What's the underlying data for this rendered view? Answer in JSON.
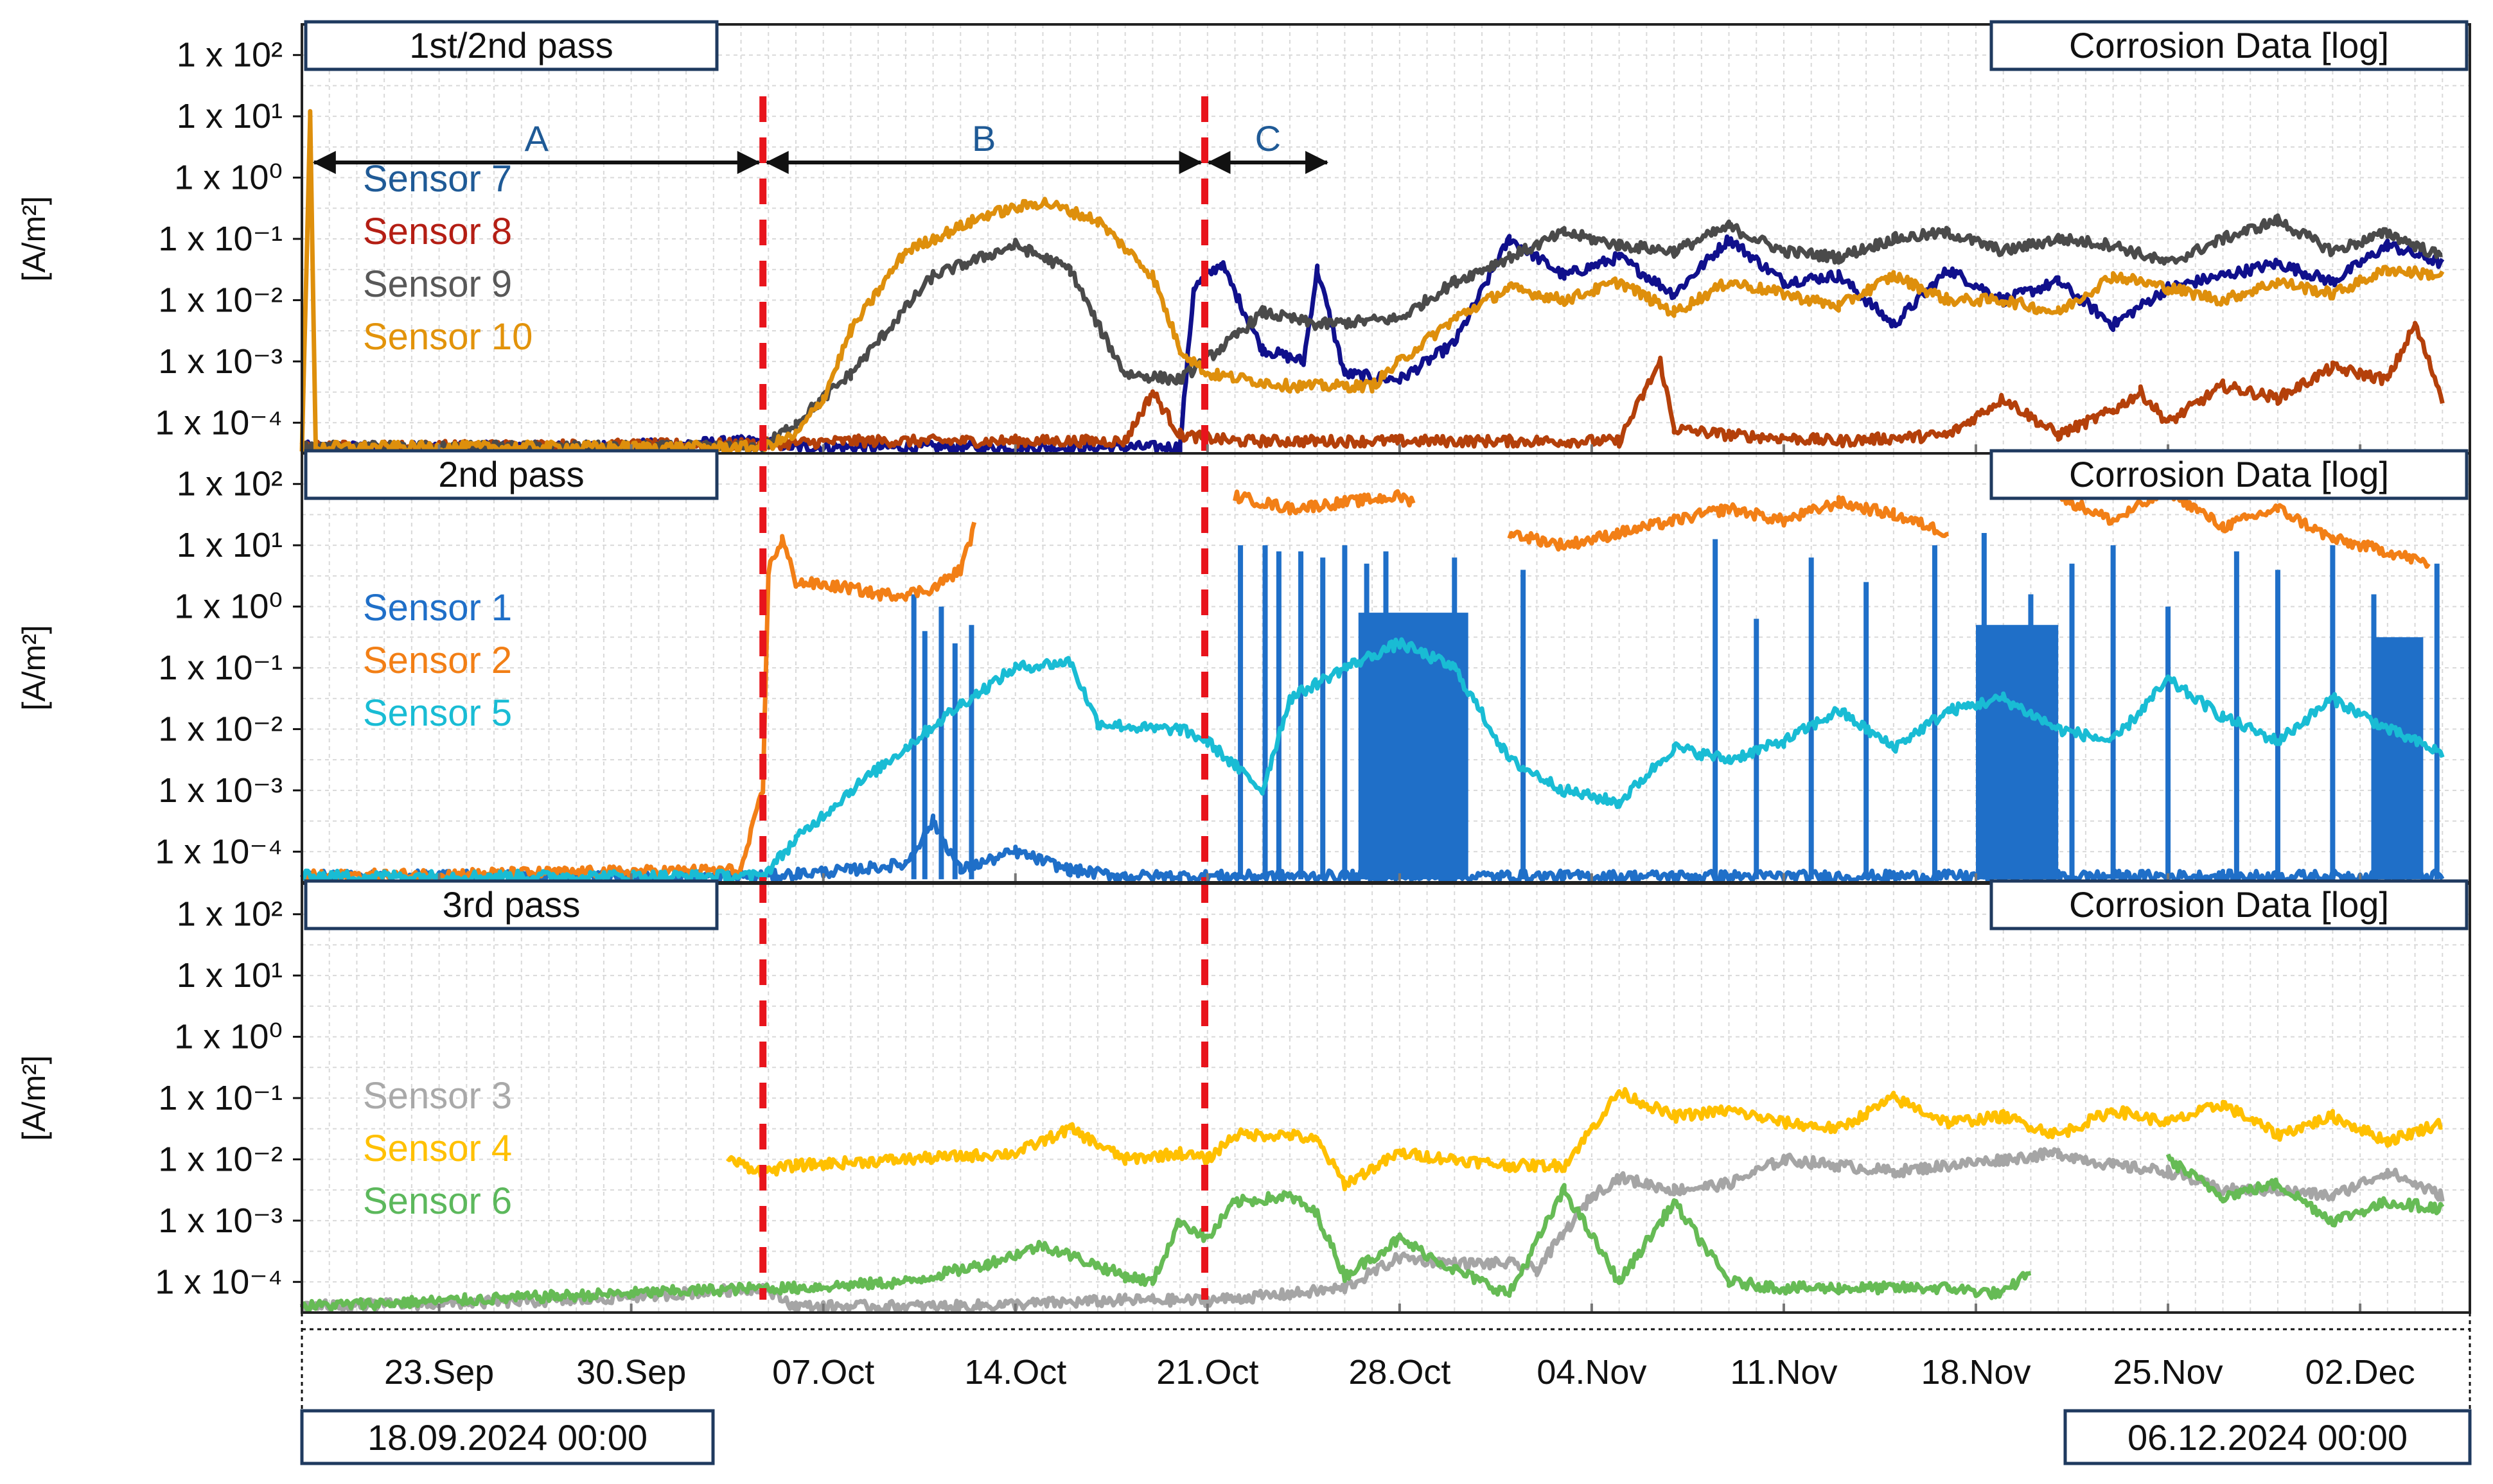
{
  "chart_data": {
    "type": "line",
    "y_scale": "log",
    "x_range": [
      "18.09.2024 00:00",
      "06.12.2024 00:00"
    ],
    "x_tick_labels": [
      "23.Sep",
      "30.Sep",
      "07.Oct",
      "14.Oct",
      "21.Oct",
      "28.Oct",
      "04.Nov",
      "11.Nov",
      "18.Nov",
      "25.Nov",
      "02.Dec"
    ],
    "x_tick_days": [
      5,
      12,
      19,
      26,
      33,
      40,
      47,
      54,
      61,
      68,
      75
    ],
    "total_days": 79,
    "y_tick_labels": [
      "1 x 10²",
      "1 x 10¹",
      "1 x 10⁰",
      "1 x 10⁻¹",
      "1 x 10⁻²",
      "1 x 10⁻³",
      "1 x 10⁻⁴"
    ],
    "y_tick_exponents": [
      2,
      1,
      0,
      -1,
      -2,
      -3,
      -4
    ],
    "ylim_log10": [
      -4.5,
      2.5
    ],
    "ylabel": "[A/m²]",
    "start_label": "18.09.2024 00:00",
    "end_label": "06.12.2024 00:00",
    "markers": [
      {
        "day": 16.8,
        "color": "#e8141c"
      },
      {
        "day": 32.9,
        "color": "#e8141c"
      }
    ],
    "phases": [
      {
        "label": "A",
        "from_day": 0.3,
        "to_day": 16.8
      },
      {
        "label": "B",
        "from_day": 16.8,
        "to_day": 32.9
      },
      {
        "label": "C",
        "from_day": 32.9,
        "to_day": 37.5
      }
    ],
    "panels": [
      {
        "title": "1st/2nd pass",
        "corner_label": "Corrosion Data [log]",
        "series": [
          {
            "name": "Sensor 7",
            "color": "#1f5a96",
            "line_color": "#10108c",
            "days": [
              0,
              10,
              16.8,
              18,
              24,
              30,
              32,
              32.5,
              33.5,
              35,
              36.5,
              37,
              38,
              40,
              42,
              44,
              46,
              48,
              50,
              52,
              54,
              56,
              58,
              60,
              62,
              64,
              66,
              68,
              70,
              72,
              74,
              76,
              78
            ],
            "log10_values": [
              -4.4,
              -4.4,
              -4.3,
              -4.4,
              -4.4,
              -4.4,
              -4.4,
              -1.8,
              -1.4,
              -2.8,
              -3.0,
              -1.5,
              -3.2,
              -3.3,
              -2.7,
              -1.0,
              -1.6,
              -1.3,
              -1.9,
              -1.0,
              -1.7,
              -1.6,
              -2.4,
              -1.5,
              -2.0,
              -1.7,
              -2.4,
              -1.8,
              -1.6,
              -1.4,
              -1.7,
              -1.1,
              -1.4
            ]
          },
          {
            "name": "Sensor 8",
            "color": "#b41e14",
            "line_color": "#b4400a",
            "days": [
              0,
              16.8,
              20,
              30,
              31,
              32,
              34,
              40,
              48,
              49.5,
              50,
              52,
              56,
              60,
              62,
              64,
              66,
              67,
              68,
              70,
              72,
              74,
              76,
              77,
              78
            ],
            "log10_values": [
              -4.4,
              -4.35,
              -4.3,
              -4.3,
              -3.5,
              -4.2,
              -4.3,
              -4.3,
              -4.3,
              -3.0,
              -4.1,
              -4.2,
              -4.3,
              -4.2,
              -3.6,
              -4.2,
              -3.8,
              -3.5,
              -4.0,
              -3.4,
              -3.6,
              -3.1,
              -3.3,
              -2.4,
              -3.6
            ]
          },
          {
            "name": "Sensor 9",
            "color": "#585858",
            "line_color": "#4a4a4a",
            "days": [
              0,
              16.8,
              18,
              20,
              23,
              26,
              28,
              29,
              30,
              32,
              34,
              35,
              37,
              40,
              42,
              44,
              46,
              48,
              50,
              52,
              54,
              56,
              58,
              60,
              62,
              64,
              66,
              68,
              70,
              72,
              74,
              76,
              78
            ],
            "log10_values": [
              -4.4,
              -4.4,
              -4.0,
              -3.2,
              -1.6,
              -1.1,
              -1.5,
              -2.4,
              -3.2,
              -3.3,
              -2.6,
              -2.2,
              -2.4,
              -2.3,
              -1.7,
              -1.3,
              -0.9,
              -1.1,
              -1.2,
              -0.8,
              -1.2,
              -1.3,
              -1.0,
              -0.9,
              -1.2,
              -1.0,
              -1.1,
              -1.4,
              -1.0,
              -0.7,
              -1.2,
              -0.9,
              -1.3
            ]
          },
          {
            "name": "Sensor 10",
            "color": "#e2930b",
            "line_color": "#de8f0c",
            "days": [
              0,
              0.3,
              0.5,
              16.8,
              18,
              19,
              20,
              22,
              25,
              27,
              29,
              31,
              32,
              33,
              36,
              39,
              40,
              42,
              44,
              46,
              48,
              50,
              52,
              54,
              56,
              58,
              60,
              62,
              64,
              66,
              68,
              70,
              72,
              74,
              76,
              78
            ],
            "log10_values": [
              -4.4,
              1.0,
              -4.4,
              -4.4,
              -4.2,
              -3.6,
              -2.5,
              -1.2,
              -0.6,
              -0.4,
              -0.7,
              -1.6,
              -2.8,
              -3.2,
              -3.4,
              -3.4,
              -3.0,
              -2.3,
              -1.8,
              -2.0,
              -1.7,
              -2.2,
              -1.7,
              -1.9,
              -2.1,
              -1.6,
              -2.0,
              -2.0,
              -2.2,
              -1.6,
              -1.8,
              -2.0,
              -1.7,
              -1.9,
              -1.5,
              -1.6
            ]
          }
        ]
      },
      {
        "title": "2nd pass",
        "corner_label": "Corrosion Data [log]",
        "series": [
          {
            "name": "Sensor 1",
            "color": "#1f6fc8",
            "line_color": "#1f6fc8",
            "days": [
              0,
              16.8,
              20,
              22,
              23,
              24,
              26,
              28,
              30,
              32,
              33,
              34,
              36,
              40,
              44,
              46,
              50,
              54,
              58,
              62,
              66,
              70,
              74,
              78
            ],
            "log10_values": [
              -4.4,
              -4.4,
              -4.3,
              -4.2,
              -3.5,
              -4.3,
              -4.0,
              -4.3,
              -4.4,
              -4.4,
              -4.4,
              -4.4,
              -4.4,
              -4.4,
              -4.4,
              -4.4,
              -4.4,
              -4.4,
              -4.4,
              -4.4,
              -4.4,
              -4.4,
              -4.4,
              -4.4
            ],
            "spike_days": [
              22.3,
              22.7,
              23.3,
              23.8,
              24.4,
              34.2,
              35.1,
              35.6,
              36.4,
              37.2,
              38.0,
              38.8,
              39.5,
              42.0,
              44.5,
              51.5,
              53.0,
              55.0,
              57.0,
              59.5,
              61.3,
              63.0,
              64.5,
              66.0,
              68.0,
              70.5,
              72.0,
              74.0,
              75.5,
              77.8
            ],
            "spike_tops": [
              0.2,
              -0.4,
              0.0,
              -0.6,
              -0.3,
              1.0,
              1.0,
              0.9,
              0.9,
              0.8,
              1.0,
              0.7,
              0.9,
              0.8,
              0.6,
              1.1,
              -0.2,
              0.8,
              0.4,
              1.0,
              1.2,
              0.2,
              0.7,
              1.0,
              0.0,
              0.9,
              0.6,
              1.0,
              0.2,
              0.7
            ],
            "bands": [
              [
                38.5,
                42.5,
                -0.1
              ],
              [
                61.0,
                64.0,
                -0.3
              ],
              [
                75.5,
                77.3,
                -0.5
              ]
            ]
          },
          {
            "name": "Sensor 2",
            "color": "#f27f16",
            "line_color": "#f27f16",
            "days": [
              0,
              16,
              16.8,
              17.0,
              17.5,
              18,
              20,
              21,
              22,
              23,
              24,
              24.5,
              33,
              34,
              36,
              38,
              40,
              40.5,
              43,
              44,
              46,
              48,
              50,
              52,
              54,
              56,
              58,
              60,
              62,
              64,
              66,
              68,
              70,
              72,
              74,
              76,
              77.5
            ],
            "log10_values": [
              -4.4,
              -4.3,
              -3.0,
              0.6,
              1.1,
              0.4,
              0.3,
              0.2,
              0.2,
              0.3,
              0.6,
              1.3,
              null,
              1.8,
              1.6,
              1.7,
              1.8,
              1.7,
              null,
              1.2,
              1.0,
              1.2,
              1.4,
              1.6,
              1.4,
              1.7,
              1.5,
              1.2,
              null,
              1.8,
              1.4,
              1.9,
              1.3,
              1.6,
              1.1,
              0.9,
              0.7
            ]
          },
          {
            "name": "Sensor 5",
            "color": "#19bcd4",
            "line_color": "#19bcd4",
            "days": [
              0,
              16.8,
              18,
              20,
              22,
              24,
              26,
              28,
              29,
              31,
              32,
              33,
              34,
              35,
              36,
              38,
              40,
              42,
              44,
              46,
              48,
              50,
              52,
              54,
              56,
              58,
              60,
              62,
              64,
              66,
              68,
              70,
              72,
              74,
              76,
              78
            ],
            "log10_values": [
              -4.4,
              -4.4,
              -3.8,
              -3.0,
              -2.3,
              -1.6,
              -1.0,
              -0.9,
              -1.9,
              -2.0,
              -2.0,
              -2.2,
              -2.6,
              -3.0,
              -1.5,
              -1.0,
              -0.6,
              -1.0,
              -2.5,
              -3.0,
              -3.2,
              -2.3,
              -2.5,
              -2.2,
              -1.7,
              -2.3,
              -1.7,
              -1.5,
              -2.0,
              -2.2,
              -1.2,
              -1.8,
              -2.2,
              -1.5,
              -2.0,
              -2.4
            ]
          }
        ]
      },
      {
        "title": "3rd pass",
        "corner_label": "Corrosion Data [log]",
        "series": [
          {
            "name": "Sensor 3",
            "color": "#a9a9a9",
            "line_color": "#a5a5a5",
            "days": [
              0,
              10,
              16.8,
              18,
              24,
              30,
              33,
              36,
              38,
              40,
              42,
              44,
              45,
              47,
              48,
              50,
              52,
              54,
              56,
              58,
              60,
              62,
              64,
              66,
              68,
              70,
              72,
              74,
              76,
              78
            ],
            "log10_values": [
              -4.4,
              -4.3,
              -4.1,
              -4.4,
              -4.4,
              -4.3,
              -4.3,
              -4.2,
              -4.1,
              -3.6,
              -3.7,
              -3.7,
              -3.8,
              -2.6,
              -2.3,
              -2.5,
              -2.4,
              -2.0,
              -2.1,
              -2.2,
              -2.1,
              -2.0,
              -1.9,
              -2.1,
              -2.2,
              -2.5,
              -2.5,
              -2.6,
              -2.2,
              -2.6
            ]
          },
          {
            "name": "Sensor 4",
            "color": "#ffc000",
            "line_color": "#ffc000",
            "days": [
              15.5,
              16.8,
              18,
              22,
              26,
              28,
              30,
              32,
              33,
              34,
              36,
              37,
              38,
              40,
              42,
              44,
              46,
              47,
              48,
              50,
              52,
              54,
              56,
              58,
              60,
              62,
              64,
              66,
              68,
              70,
              72,
              74,
              76,
              78
            ],
            "log10_values": [
              -2.0,
              -2.2,
              -2.1,
              -2.0,
              -1.9,
              -1.5,
              -2.0,
              -1.9,
              -2.0,
              -1.6,
              -1.6,
              -1.7,
              -2.4,
              -1.9,
              -2.0,
              -2.1,
              -2.1,
              -1.5,
              -0.9,
              -1.3,
              -1.2,
              -1.4,
              -1.5,
              -1.0,
              -1.4,
              -1.3,
              -1.6,
              -1.2,
              -1.4,
              -1.1,
              -1.6,
              -1.3,
              -1.7,
              -1.4
            ]
          },
          {
            "name": "Sensor 6",
            "color": "#5cb85c",
            "line_color": "#66bb55",
            "days": [
              0,
              16.8,
              18,
              22,
              25,
              27,
              30,
              31,
              32,
              33,
              34,
              36,
              37,
              38,
              40,
              42,
              44,
              46,
              48,
              50,
              52,
              54,
              56,
              58,
              60,
              62,
              63,
              66,
              68,
              70,
              72,
              74,
              76,
              78
            ],
            "log10_values": [
              -4.4,
              -4.1,
              -4.1,
              -4.0,
              -3.7,
              -3.4,
              -3.9,
              -4.0,
              -3.0,
              -3.3,
              -2.7,
              -2.6,
              -2.9,
              -3.9,
              -3.3,
              -3.8,
              -4.2,
              -2.5,
              -4.0,
              -2.7,
              -4.0,
              -4.1,
              -4.1,
              -4.1,
              -4.1,
              -4.2,
              -3.8,
              null,
              -2.0,
              -2.6,
              -2.4,
              -3.0,
              -2.7,
              -2.8
            ]
          }
        ]
      }
    ]
  }
}
